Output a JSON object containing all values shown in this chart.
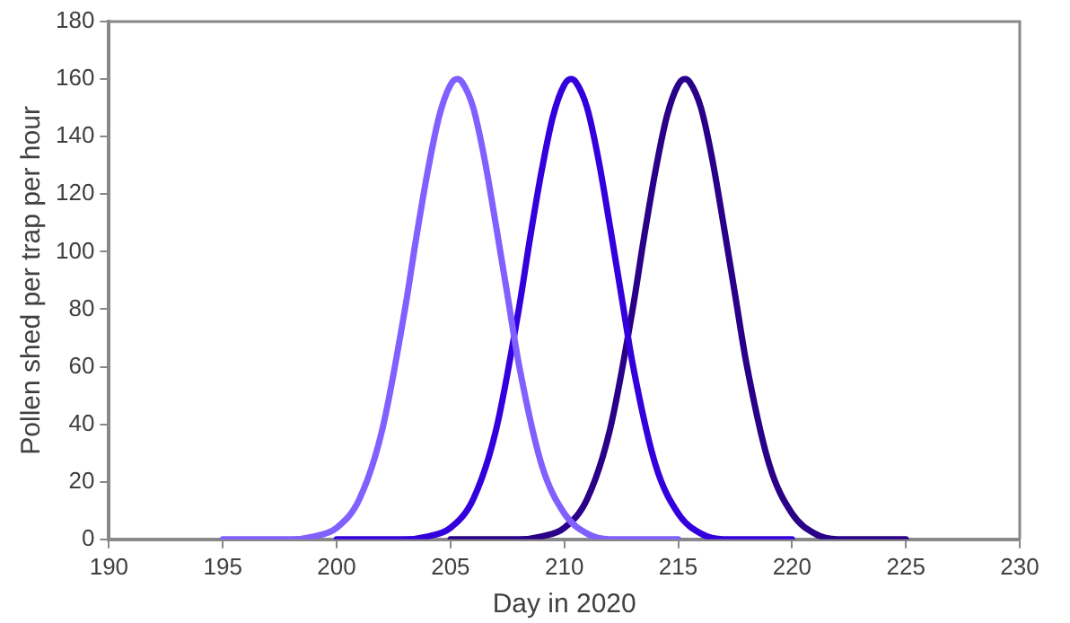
{
  "chart_data": {
    "type": "line",
    "xlabel": "Day in 2020",
    "ylabel": "Pollen shed per trap per hour",
    "xlim": [
      190,
      230
    ],
    "xticks": [
      190,
      195,
      200,
      205,
      210,
      215,
      220,
      225,
      230
    ],
    "ylim": [
      0,
      180
    ],
    "yticks": [
      0,
      20,
      40,
      60,
      80,
      100,
      120,
      140,
      160,
      180
    ],
    "grid": false,
    "legend": false,
    "marker": "none",
    "line_style": "solid",
    "series": [
      {
        "color": "#8060ff",
        "x": [
          195,
          196,
          197,
          198,
          199,
          200,
          201,
          202,
          203,
          203.5,
          204,
          204.5,
          205,
          205.3,
          205.5,
          206,
          206.5,
          207,
          207.5,
          208,
          209,
          210,
          211,
          212,
          213,
          214,
          215
        ],
        "values": [
          0,
          0,
          0,
          0,
          1,
          4,
          14,
          38,
          80,
          105,
          128,
          147,
          158,
          160,
          159,
          150,
          132,
          109,
          85,
          61,
          26,
          9,
          2,
          0,
          0,
          0,
          0
        ]
      },
      {
        "color": "#3300dd",
        "x": [
          200,
          201,
          202,
          203,
          204,
          205,
          206,
          207,
          208,
          208.5,
          209,
          209.5,
          210,
          210.3,
          210.5,
          211,
          211.5,
          212,
          212.5,
          213,
          214,
          215,
          216,
          217,
          218,
          219,
          220
        ],
        "values": [
          0,
          0,
          0,
          0,
          1,
          4,
          14,
          38,
          80,
          105,
          128,
          147,
          158,
          160,
          159,
          150,
          132,
          109,
          85,
          61,
          26,
          9,
          2,
          0,
          0,
          0,
          0
        ]
      },
      {
        "color": "#2a0088",
        "x": [
          205,
          206,
          207,
          208,
          209,
          210,
          211,
          212,
          213,
          213.5,
          214,
          214.5,
          215,
          215.3,
          215.5,
          216,
          216.5,
          217,
          217.5,
          218,
          219,
          220,
          221,
          222,
          223,
          224,
          225
        ],
        "values": [
          0,
          0,
          0,
          0,
          1,
          4,
          14,
          38,
          80,
          105,
          128,
          147,
          158,
          160,
          159,
          150,
          132,
          109,
          85,
          61,
          26,
          9,
          2,
          0,
          0,
          0,
          0
        ]
      }
    ]
  }
}
